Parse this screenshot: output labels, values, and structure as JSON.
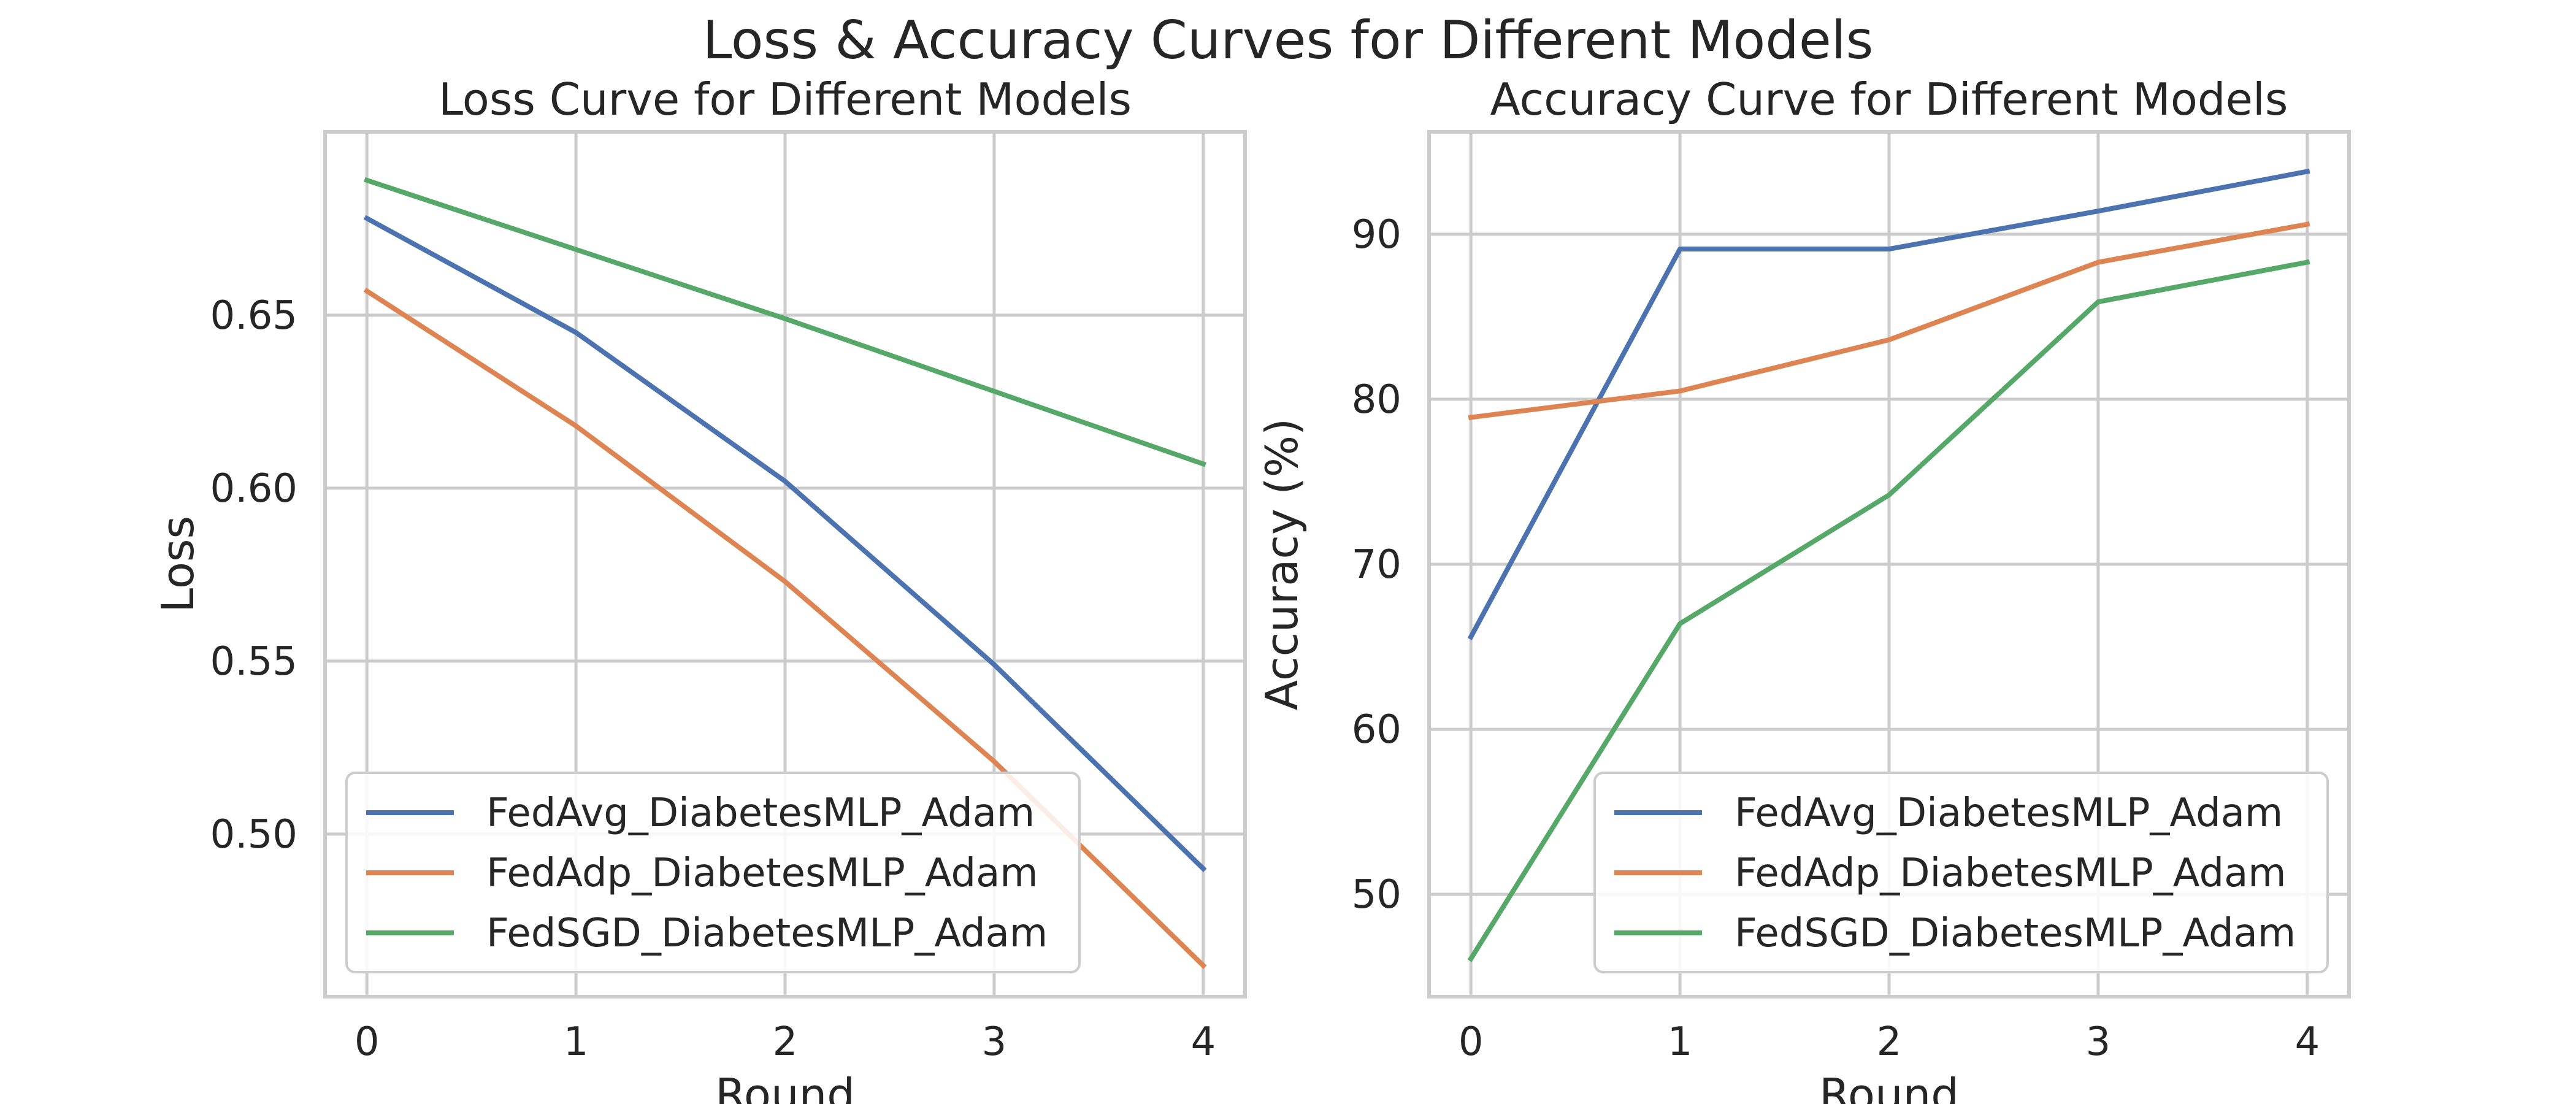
{
  "figure": {
    "suptitle": "Loss & Accuracy Curves for Different Models"
  },
  "chart_data": [
    {
      "type": "line",
      "title": "Loss Curve for Different Models",
      "xlabel": "Round",
      "ylabel": "Loss",
      "x": [
        0,
        1,
        2,
        3,
        4
      ],
      "xticks": [
        0,
        1,
        2,
        3,
        4
      ],
      "yticks": [
        0.5,
        0.55,
        0.6,
        0.65
      ],
      "ytick_labels": [
        "0.50",
        "0.55",
        "0.60",
        "0.65"
      ],
      "ylim": [
        0.453,
        0.703
      ],
      "grid": true,
      "legend_position": "lower-left",
      "series": [
        {
          "name": "FedAvg_DiabetesMLP_Adam",
          "color": "#4c72b0",
          "values": [
            0.678,
            0.645,
            0.602,
            0.549,
            0.49
          ]
        },
        {
          "name": "FedAdp_DiabetesMLP_Adam",
          "color": "#dd8452",
          "values": [
            0.657,
            0.618,
            0.573,
            0.521,
            0.462
          ]
        },
        {
          "name": "FedSGD_DiabetesMLP_Adam",
          "color": "#55a868",
          "values": [
            0.689,
            0.669,
            0.649,
            0.628,
            0.607
          ]
        }
      ]
    },
    {
      "type": "line",
      "title": "Accuracy Curve for Different Models",
      "xlabel": "Round",
      "ylabel": "Accuracy (%)",
      "x": [
        0,
        1,
        2,
        3,
        4
      ],
      "xticks": [
        0,
        1,
        2,
        3,
        4
      ],
      "yticks": [
        50,
        60,
        70,
        80,
        90
      ],
      "ytick_labels": [
        "50",
        "60",
        "70",
        "80",
        "90"
      ],
      "ylim": [
        43.8,
        96.2
      ],
      "grid": true,
      "legend_position": "lower-right",
      "series": [
        {
          "name": "FedAvg_DiabetesMLP_Adam",
          "color": "#4c72b0",
          "values": [
            65.6,
            89.1,
            89.1,
            91.4,
            93.8
          ]
        },
        {
          "name": "FedAdp_DiabetesMLP_Adam",
          "color": "#dd8452",
          "values": [
            78.9,
            80.5,
            83.6,
            88.3,
            90.6
          ]
        },
        {
          "name": "FedSGD_DiabetesMLP_Adam",
          "color": "#55a868",
          "values": [
            46.1,
            66.4,
            74.2,
            85.9,
            88.3
          ]
        }
      ]
    }
  ]
}
